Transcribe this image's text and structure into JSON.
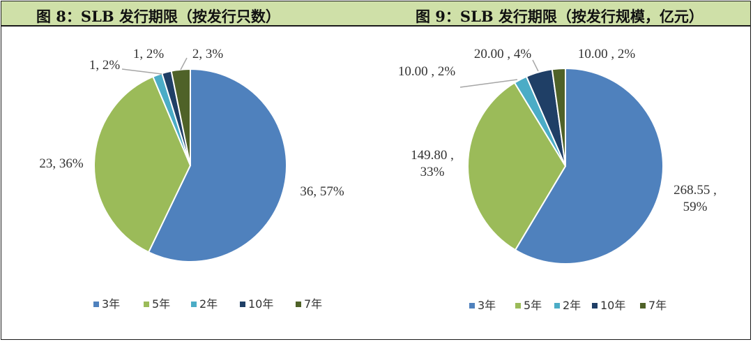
{
  "titles": {
    "left": "图 8：SLB 发行期限（按发行只数）",
    "right": "图 9：SLB 发行期限（按发行规模，亿元）"
  },
  "colors": {
    "header_bg": "#cfe0a8",
    "series": [
      "#4f81bd",
      "#9bbb59",
      "#4bacc6",
      "#1f3f66",
      "#4f6228"
    ]
  },
  "chart_data": [
    {
      "type": "pie",
      "title": "图 8：SLB 发行期限（按发行只数）",
      "categories": [
        "3年",
        "5年",
        "2年",
        "10年",
        "7年"
      ],
      "values": [
        36,
        23,
        1,
        1,
        2
      ],
      "percents": [
        "57%",
        "36%",
        "2%",
        "2%",
        "3%"
      ],
      "data_labels": [
        [
          "36, 57%"
        ],
        [
          "23, 36%"
        ],
        [
          "1, 2%"
        ],
        [
          "1, 2%"
        ],
        [
          "2, 3%"
        ]
      ],
      "legend": "bottom"
    },
    {
      "type": "pie",
      "title": "图 9：SLB 发行期限（按发行规模，亿元）",
      "categories": [
        "3年",
        "5年",
        "2年",
        "10年",
        "7年"
      ],
      "values": [
        268.55,
        149.8,
        10.0,
        20.0,
        10.0
      ],
      "percents": [
        "59%",
        "33%",
        "2%",
        "4%",
        "2%"
      ],
      "data_labels": [
        [
          "268.55 ,",
          "59%"
        ],
        [
          "149.80 ,",
          "33%"
        ],
        [
          "10.00 , 2%"
        ],
        [
          "20.00 , 4%"
        ],
        [
          "10.00 , 2%"
        ]
      ],
      "legend": "bottom"
    }
  ]
}
